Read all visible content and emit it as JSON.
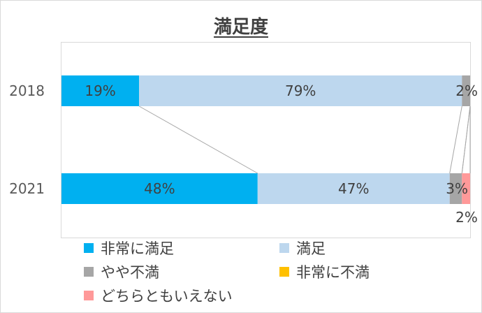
{
  "chart_data": {
    "type": "bar",
    "orientation": "horizontal",
    "stacked": "percent",
    "title": "満足度",
    "categories": [
      "2018",
      "2021"
    ],
    "series": [
      {
        "name": "非常に満足",
        "color": "#00b0f0",
        "values": [
          19,
          48
        ],
        "labels": [
          "19%",
          "48%"
        ]
      },
      {
        "name": "満足",
        "color": "#bdd7ee",
        "values": [
          79,
          47
        ],
        "labels": [
          "79%",
          "47%"
        ]
      },
      {
        "name": "やや不満",
        "color": "#a6a6a6",
        "values": [
          2,
          3
        ],
        "labels": [
          "2%",
          "3%"
        ]
      },
      {
        "name": "非常に不満",
        "color": "#ffc000",
        "values": [
          0,
          0
        ],
        "labels": [
          "",
          ""
        ]
      },
      {
        "name": "どちらともいえない",
        "color": "#ff9999",
        "values": [
          0,
          2
        ],
        "labels": [
          "",
          "2%"
        ]
      }
    ],
    "series_lines": true,
    "legend_position": "bottom",
    "xlim": [
      0,
      100
    ]
  }
}
